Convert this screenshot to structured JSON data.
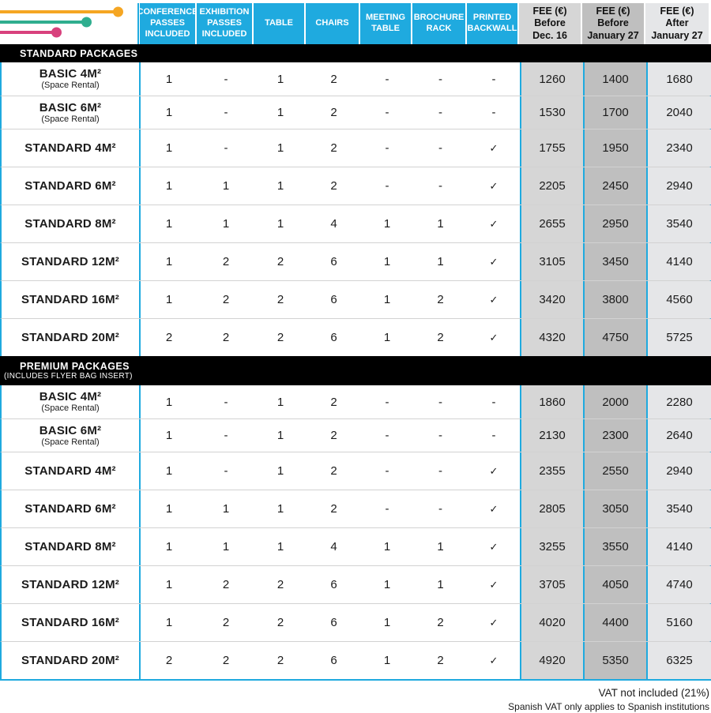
{
  "header": {
    "feature_columns": [
      "CONFERENCE PASSES INCLUDED",
      "EXHIBITION PASSES INCLUDED",
      "TABLE",
      "CHAIRS",
      "MEETING TABLE",
      "BROCHURE RACK",
      "PRINTED BACKWALL"
    ],
    "fee_columns": [
      {
        "line1": "FEE (€)",
        "line2": "Before",
        "line3": "Dec. 16"
      },
      {
        "line1": "FEE (€)",
        "line2": "Before",
        "line3": "January 27"
      },
      {
        "line1": "FEE (€)",
        "line2": "After",
        "line3": "January 27"
      }
    ]
  },
  "sections": [
    {
      "title": "STANDARD PACKAGES",
      "subtitle": "",
      "rows": [
        {
          "name": "BASIC 4M²",
          "note": "(Space Rental)",
          "features": [
            "1",
            "-",
            "1",
            "2",
            "-",
            "-",
            "-"
          ],
          "fees": [
            "1260",
            "1400",
            "1680"
          ]
        },
        {
          "name": "BASIC 6M²",
          "note": "(Space Rental)",
          "features": [
            "1",
            "-",
            "1",
            "2",
            "-",
            "-",
            "-"
          ],
          "fees": [
            "1530",
            "1700",
            "2040"
          ]
        },
        {
          "name": "STANDARD 4M²",
          "note": "",
          "features": [
            "1",
            "-",
            "1",
            "2",
            "-",
            "-",
            "✓"
          ],
          "fees": [
            "1755",
            "1950",
            "2340"
          ]
        },
        {
          "name": "STANDARD 6M²",
          "note": "",
          "features": [
            "1",
            "1",
            "1",
            "2",
            "-",
            "-",
            "✓"
          ],
          "fees": [
            "2205",
            "2450",
            "2940"
          ]
        },
        {
          "name": "STANDARD 8M²",
          "note": "",
          "features": [
            "1",
            "1",
            "1",
            "4",
            "1",
            "1",
            "✓"
          ],
          "fees": [
            "2655",
            "2950",
            "3540"
          ]
        },
        {
          "name": "STANDARD 12M²",
          "note": "",
          "features": [
            "1",
            "2",
            "2",
            "6",
            "1",
            "1",
            "✓"
          ],
          "fees": [
            "3105",
            "3450",
            "4140"
          ]
        },
        {
          "name": "STANDARD 16M²",
          "note": "",
          "features": [
            "1",
            "2",
            "2",
            "6",
            "1",
            "2",
            "✓"
          ],
          "fees": [
            "3420",
            "3800",
            "4560"
          ]
        },
        {
          "name": "STANDARD 20M²",
          "note": "",
          "features": [
            "2",
            "2",
            "2",
            "6",
            "1",
            "2",
            "✓"
          ],
          "fees": [
            "4320",
            "4750",
            "5725"
          ]
        }
      ]
    },
    {
      "title": "PREMIUM PACKAGES",
      "subtitle": "(INCLUDES FLYER BAG INSERT)",
      "rows": [
        {
          "name": "BASIC 4M²",
          "note": "(Space Rental)",
          "features": [
            "1",
            "-",
            "1",
            "2",
            "-",
            "-",
            "-"
          ],
          "fees": [
            "1860",
            "2000",
            "2280"
          ]
        },
        {
          "name": "BASIC 6M²",
          "note": "(Space Rental)",
          "features": [
            "1",
            "-",
            "1",
            "2",
            "-",
            "-",
            "-"
          ],
          "fees": [
            "2130",
            "2300",
            "2640"
          ]
        },
        {
          "name": "STANDARD 4M²",
          "note": "",
          "features": [
            "1",
            "-",
            "1",
            "2",
            "-",
            "-",
            "✓"
          ],
          "fees": [
            "2355",
            "2550",
            "2940"
          ]
        },
        {
          "name": "STANDARD 6M²",
          "note": "",
          "features": [
            "1",
            "1",
            "1",
            "2",
            "-",
            "-",
            "✓"
          ],
          "fees": [
            "2805",
            "3050",
            "3540"
          ]
        },
        {
          "name": "STANDARD 8M²",
          "note": "",
          "features": [
            "1",
            "1",
            "1",
            "4",
            "1",
            "1",
            "✓"
          ],
          "fees": [
            "3255",
            "3550",
            "4140"
          ]
        },
        {
          "name": "STANDARD 12M²",
          "note": "",
          "features": [
            "1",
            "2",
            "2",
            "6",
            "1",
            "1",
            "✓"
          ],
          "fees": [
            "3705",
            "4050",
            "4740"
          ]
        },
        {
          "name": "STANDARD 16M²",
          "note": "",
          "features": [
            "1",
            "2",
            "2",
            "6",
            "1",
            "2",
            "✓"
          ],
          "fees": [
            "4020",
            "4400",
            "5160"
          ]
        },
        {
          "name": "STANDARD 20M²",
          "note": "",
          "features": [
            "2",
            "2",
            "2",
            "6",
            "1",
            "2",
            "✓"
          ],
          "fees": [
            "4920",
            "5350",
            "6325"
          ]
        }
      ]
    }
  ],
  "footer": {
    "line1": "VAT not included (21%)",
    "line2": "Spanish VAT only applies to Spanish institutions"
  },
  "symbols": {
    "check": "✓",
    "dash": "-"
  },
  "colors": {
    "accent_cyan": "#1FAADF",
    "band_black": "#000000",
    "fee_col1_bg": "#D6D6D6",
    "fee_col2_bg": "#BFBFBF",
    "fee_col3_bg": "#E5E6E8",
    "decor_orange": "#F5A623",
    "decor_teal": "#2FAE8F",
    "decor_pink": "#D8417D"
  }
}
